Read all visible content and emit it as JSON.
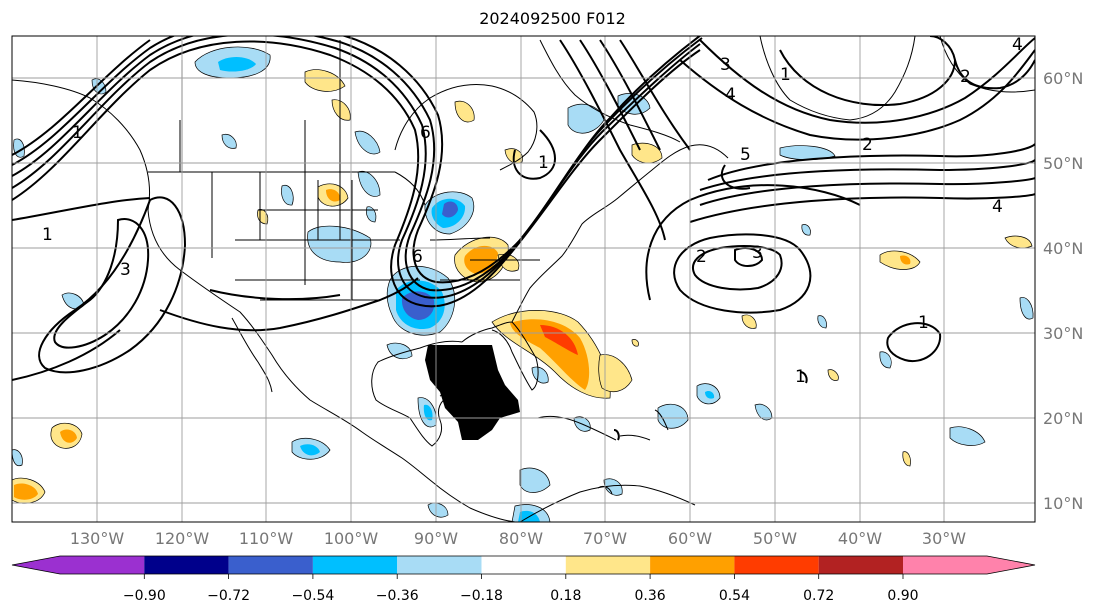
{
  "title": "2024092500 F012",
  "lat_labels": [
    "60°N",
    "50°N",
    "40°N",
    "30°N",
    "20°N",
    "10°N"
  ],
  "lon_labels": [
    "130°W",
    "120°W",
    "110°W",
    "100°W",
    "90°W",
    "80°W",
    "70°W",
    "60°W",
    "50°W",
    "40°W",
    "30°W"
  ],
  "colorbar": {
    "ticks": [
      "−0.90",
      "−0.72",
      "−0.54",
      "−0.36",
      "−0.18",
      "0.18",
      "0.36",
      "0.54",
      "0.72",
      "0.90"
    ],
    "colors": [
      "#9b30d0",
      "#00008b",
      "#3a5fcd",
      "#00bfff",
      "#a8dcf5",
      "#ffffff",
      "#ffe68a",
      "#ffa000",
      "#ff3c00",
      "#b22222",
      "#ff82ab"
    ]
  },
  "contour_labels": [
    "1",
    "3",
    "1",
    "6",
    "6",
    "1",
    "3",
    "4",
    "5",
    "2",
    "4",
    "2",
    "3",
    "1",
    "1",
    "2",
    "1",
    "4"
  ],
  "fill_colors": {
    "light_blue": "#a8dcf5",
    "blue": "#00bfff",
    "mid_blue": "#3a5fcd",
    "dark_blue": "#00008b",
    "light_yellow": "#ffe68a",
    "orange": "#ffa000",
    "red_orange": "#ff3c00"
  }
}
